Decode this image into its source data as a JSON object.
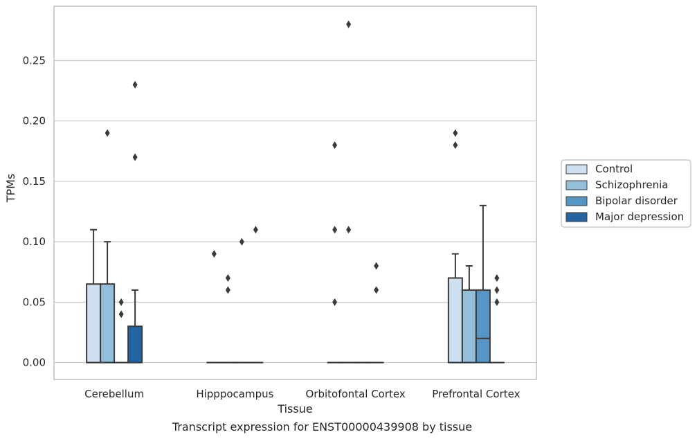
{
  "chart_data": {
    "type": "box",
    "title": "",
    "caption": "Transcript expression for ENST00000439908 by tissue",
    "xlabel": "Tissue",
    "ylabel": "TPMs",
    "ylim": [
      -0.014,
      0.295
    ],
    "yticks": [
      0.0,
      0.05,
      0.1,
      0.15,
      0.2,
      0.25
    ],
    "ytick_labels": [
      "0.00",
      "0.05",
      "0.10",
      "0.15",
      "0.20",
      "0.25"
    ],
    "grid": "horizontal",
    "legend_position": "right",
    "categories": [
      "Cerebellum",
      "Hipppocampus",
      "Orbitofontal Cortex",
      "Prefrontal Cortex"
    ],
    "colors": {
      "Control": "#cfe1f0",
      "Schizophrenia": "#94bfdb",
      "Bipolar disorder": "#5596c6",
      "Major depression": "#2464a3",
      "edge": "#3a3a3a",
      "grid": "#cccccc",
      "frame": "#bdbdbd"
    },
    "series": [
      {
        "name": "Control",
        "boxes": [
          {
            "q1": 0.0,
            "median": 0.0,
            "q3": 0.065,
            "whislo": 0.0,
            "whishi": 0.11,
            "fliers": []
          },
          {
            "q1": 0.0,
            "median": 0.0,
            "q3": 0.0,
            "whislo": 0.0,
            "whishi": 0.0,
            "fliers": [
              0.09
            ]
          },
          {
            "q1": 0.0,
            "median": 0.0,
            "q3": 0.0,
            "whislo": 0.0,
            "whishi": 0.0,
            "fliers": [
              0.05,
              0.11,
              0.18
            ]
          },
          {
            "q1": 0.0,
            "median": 0.0,
            "q3": 0.07,
            "whislo": 0.0,
            "whishi": 0.09,
            "fliers": [
              0.18,
              0.19
            ]
          }
        ]
      },
      {
        "name": "Schizophrenia",
        "boxes": [
          {
            "q1": 0.0,
            "median": 0.0,
            "q3": 0.065,
            "whislo": 0.0,
            "whishi": 0.1,
            "fliers": [
              0.19
            ]
          },
          {
            "q1": 0.0,
            "median": 0.0,
            "q3": 0.0,
            "whislo": 0.0,
            "whishi": 0.0,
            "fliers": [
              0.06,
              0.07
            ]
          },
          {
            "q1": 0.0,
            "median": 0.0,
            "q3": 0.0,
            "whislo": 0.0,
            "whishi": 0.0,
            "fliers": [
              0.11,
              0.28
            ]
          },
          {
            "q1": 0.0,
            "median": 0.0,
            "q3": 0.06,
            "whislo": 0.0,
            "whishi": 0.08,
            "fliers": []
          }
        ]
      },
      {
        "name": "Bipolar disorder",
        "boxes": [
          {
            "q1": 0.0,
            "median": 0.0,
            "q3": 0.0,
            "whislo": 0.0,
            "whishi": 0.0,
            "fliers": [
              0.04,
              0.05
            ]
          },
          {
            "q1": 0.0,
            "median": 0.0,
            "q3": 0.0,
            "whislo": 0.0,
            "whishi": 0.0,
            "fliers": [
              0.1
            ]
          },
          {
            "q1": 0.0,
            "median": 0.0,
            "q3": 0.0,
            "whislo": 0.0,
            "whishi": 0.0,
            "fliers": []
          },
          {
            "q1": 0.0,
            "median": 0.02,
            "q3": 0.06,
            "whislo": 0.0,
            "whishi": 0.13,
            "fliers": []
          }
        ]
      },
      {
        "name": "Major depression",
        "boxes": [
          {
            "q1": 0.0,
            "median": 0.0,
            "q3": 0.03,
            "whislo": 0.0,
            "whishi": 0.06,
            "fliers": [
              0.17,
              0.23
            ]
          },
          {
            "q1": 0.0,
            "median": 0.0,
            "q3": 0.0,
            "whislo": 0.0,
            "whishi": 0.0,
            "fliers": [
              0.11
            ]
          },
          {
            "q1": 0.0,
            "median": 0.0,
            "q3": 0.0,
            "whislo": 0.0,
            "whishi": 0.0,
            "fliers": [
              0.06,
              0.08
            ]
          },
          {
            "q1": 0.0,
            "median": 0.0,
            "q3": 0.0,
            "whislo": 0.0,
            "whishi": 0.0,
            "fliers": [
              0.05,
              0.06,
              0.07
            ]
          }
        ]
      }
    ]
  }
}
